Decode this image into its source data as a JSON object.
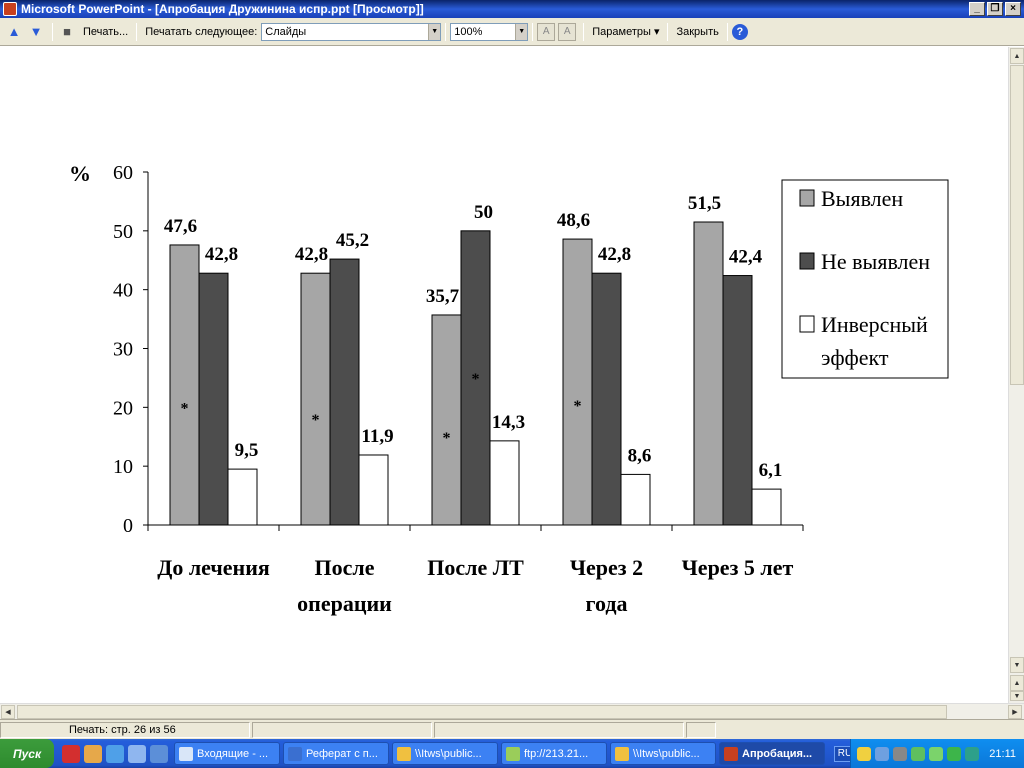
{
  "window": {
    "title": "Microsoft PowerPoint - [Апробация Дружинина испр.ppt [Просмотр]]",
    "buttons": [
      "_",
      "❐",
      "×"
    ]
  },
  "toolbar": {
    "print_label": "Печать...",
    "print_what_label": "Печатать следующее:",
    "print_what_value": "Слайды",
    "zoom_value": "100%",
    "options_label": "Параметры",
    "close_label": "Закрыть"
  },
  "status": {
    "page_text": "Печать: стр. 26 из 56"
  },
  "taskbar": {
    "start_label": "Пуск",
    "tasks": [
      {
        "label": "Входящие - ..."
      },
      {
        "label": "Реферат с п..."
      },
      {
        "label": "\\\\Itws\\public..."
      },
      {
        "label": "ftp://213.21..."
      },
      {
        "label": "\\\\Itws\\public..."
      },
      {
        "label": "Апробация..."
      }
    ],
    "language": "RU",
    "clock": "21:11"
  },
  "colors": {
    "series1": "#a6a6a6",
    "series2": "#4d4d4d",
    "series3": "#ffffff"
  },
  "chart_data": {
    "type": "bar",
    "ylabel": "%",
    "ylim": [
      0,
      60
    ],
    "yticks": [
      "0",
      "10",
      "20",
      "30",
      "40",
      "50",
      "60"
    ],
    "categories": [
      [
        "До лечения"
      ],
      [
        "После",
        "операции"
      ],
      [
        "После ЛТ"
      ],
      [
        "Через 2",
        "года"
      ],
      [
        "Через 5 лет"
      ]
    ],
    "series": [
      {
        "name": "Выявлен",
        "values": [
          47.6,
          42.8,
          35.7,
          48.6,
          51.5
        ],
        "labels": [
          "47,6",
          "42,8",
          "35,7",
          "48,6",
          "51,5"
        ]
      },
      {
        "name": "Не выявлен",
        "values": [
          42.8,
          45.2,
          50,
          42.8,
          42.4
        ],
        "labels": [
          "42,8",
          "45,2",
          "50",
          "42,8",
          "42,4"
        ]
      },
      {
        "name": "Инверсный эффект",
        "legend_lines": [
          "Инверсный",
          "эффект"
        ],
        "values": [
          9.5,
          11.9,
          14.3,
          8.6,
          6.1
        ],
        "labels": [
          "9,5",
          "11,9",
          "14,3",
          "8,6",
          "6,1"
        ]
      }
    ],
    "annotations": [
      {
        "category": 0,
        "text": "*"
      },
      {
        "category": 1,
        "text": "*"
      },
      {
        "category": 2,
        "text": "*"
      },
      {
        "category": 2,
        "series": 1,
        "text": "*"
      },
      {
        "category": 3,
        "text": "*"
      }
    ],
    "legend_position": "top-right"
  }
}
